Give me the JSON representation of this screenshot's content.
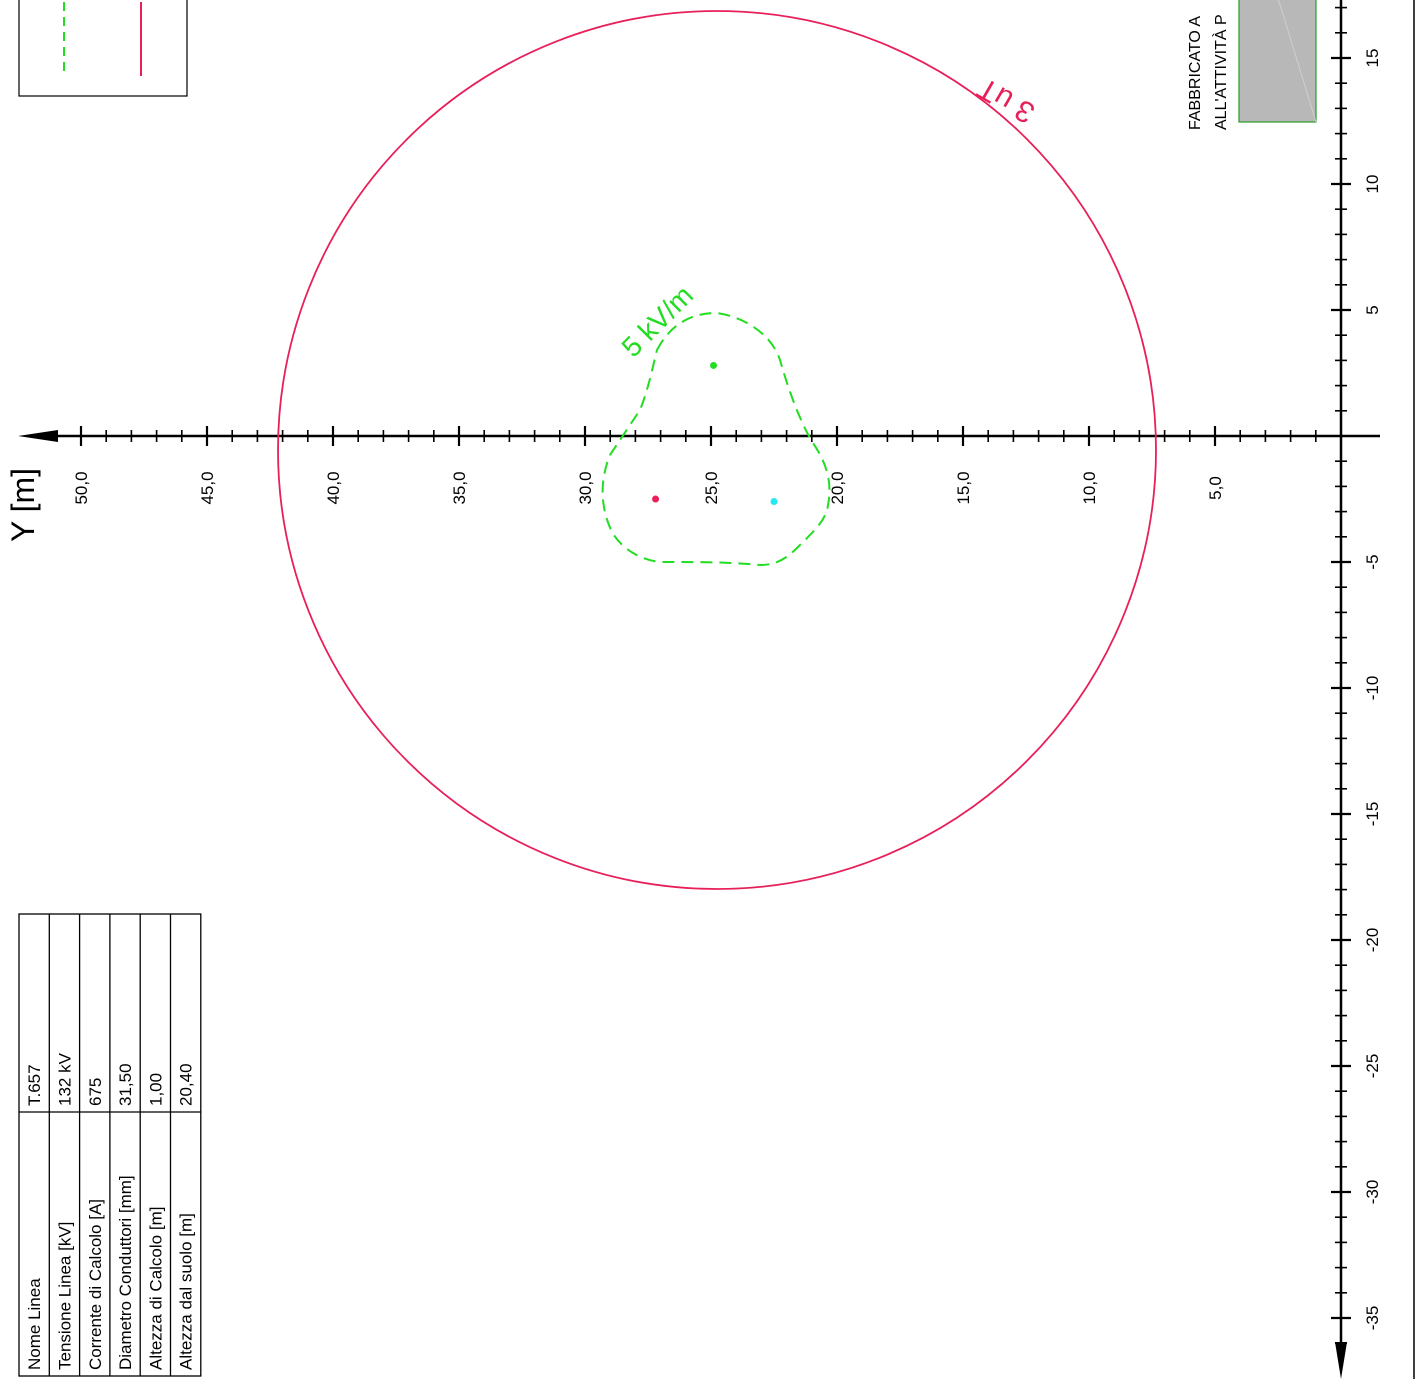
{
  "axis": {
    "y_title": "Y [m]",
    "y_tick_labels": [
      "50,0",
      "45,0",
      "40,0",
      "35,0",
      "30,0",
      "25,0",
      "20,0",
      "15,0",
      "10,0",
      "5,0"
    ],
    "x_tick_labels": [
      "15",
      "10",
      "5",
      "-5",
      "-10",
      "-15",
      "-20",
      "-25",
      "-30",
      "-35"
    ]
  },
  "labels": {
    "induction_contour": "3 uT",
    "field_contour": "5 kV/m",
    "building_line1": "FABBRICATO A",
    "building_line2": "ALL'ATTIVITÀ P"
  },
  "line_table": {
    "rows": [
      {
        "label": "Nome Linea",
        "value": "T.657"
      },
      {
        "label": "Tensione Linea [kV]",
        "value": "132 kV"
      },
      {
        "label": "Corrente di Calcolo [A]",
        "value": "675"
      },
      {
        "label": "Diametro Conduttori [mm]",
        "value": "31,50"
      },
      {
        "label": "Altezza di Calcolo [m]",
        "value": "1,00"
      },
      {
        "label": "Altezza dal suolo [m]",
        "value": "20,40"
      }
    ]
  },
  "conductors": [
    {
      "name": "conductor-top",
      "y": 24.9,
      "x": 2.8,
      "color": "#22dd22"
    },
    {
      "name": "conductor-left",
      "y": 27.2,
      "x": -2.5,
      "color": "#e8205a"
    },
    {
      "name": "conductor-right",
      "y": 22.5,
      "x": -2.6,
      "color": "#22e8f0"
    }
  ],
  "colors": {
    "induction": "#e8205a",
    "field": "#22dd22",
    "axis": "#000000",
    "building_fill": "#b8b8b8",
    "building_stroke": "#2a9a2a"
  }
}
